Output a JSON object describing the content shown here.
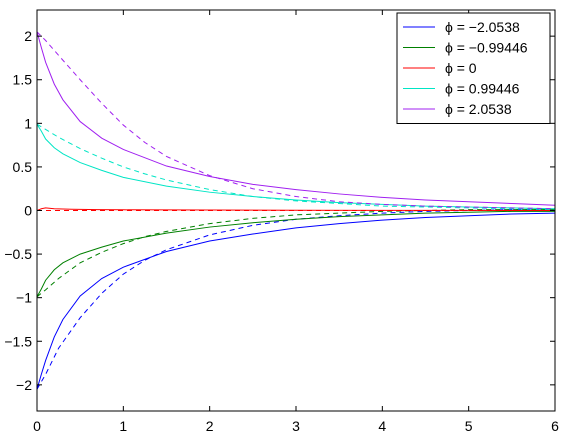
{
  "chart_data": {
    "type": "line",
    "title": "",
    "xlabel": "",
    "ylabel": "",
    "xlim": [
      0,
      6
    ],
    "ylim": [
      -2.3,
      2.3
    ],
    "xticks": [
      "0",
      "1",
      "2",
      "3",
      "4",
      "5",
      "6"
    ],
    "yticks": [
      "-2",
      "-1.5",
      "-1",
      "-0.5",
      "0",
      "0.5",
      "1",
      "1.5",
      "2"
    ],
    "grid": false,
    "legend_position": "top-right",
    "series": [
      {
        "name": "ϕ = −2.0538",
        "color": "#0000ff",
        "solid": {
          "x": [
            0,
            0.05,
            0.1,
            0.2,
            0.3,
            0.5,
            0.75,
            1,
            1.5,
            2,
            2.5,
            3,
            3.5,
            4,
            4.5,
            5,
            5.5,
            6
          ],
          "y": [
            -2.05,
            -1.88,
            -1.72,
            -1.45,
            -1.25,
            -0.98,
            -0.78,
            -0.65,
            -0.47,
            -0.35,
            -0.27,
            -0.2,
            -0.15,
            -0.11,
            -0.08,
            -0.06,
            -0.04,
            -0.03
          ]
        },
        "dashed": {
          "x": [
            0,
            0.1,
            0.25,
            0.5,
            0.75,
            1,
            1.25,
            1.5,
            2,
            2.5,
            3,
            3.5,
            4,
            4.5,
            5,
            5.5,
            6
          ],
          "y": [
            -2.05,
            -1.88,
            -1.58,
            -1.23,
            -0.95,
            -0.73,
            -0.57,
            -0.45,
            -0.28,
            -0.17,
            -0.1,
            -0.06,
            -0.03,
            -0.01,
            0.0,
            0.01,
            0.01
          ]
        }
      },
      {
        "name": "ϕ = −0.99446",
        "color": "#008000",
        "solid": {
          "x": [
            0,
            0.05,
            0.1,
            0.2,
            0.3,
            0.5,
            0.75,
            1,
            1.5,
            2,
            2.5,
            3,
            3.5,
            4,
            4.5,
            5,
            5.5,
            6
          ],
          "y": [
            -0.99,
            -0.9,
            -0.8,
            -0.68,
            -0.6,
            -0.5,
            -0.42,
            -0.35,
            -0.26,
            -0.19,
            -0.14,
            -0.1,
            -0.07,
            -0.05,
            -0.03,
            -0.02,
            -0.01,
            -0.01
          ]
        },
        "dashed": {
          "x": [
            0,
            0.1,
            0.25,
            0.5,
            0.75,
            1,
            1.25,
            1.5,
            2,
            2.5,
            3,
            3.5,
            4,
            4.5,
            5,
            5.5,
            6
          ],
          "y": [
            -0.99,
            -0.91,
            -0.78,
            -0.6,
            -0.48,
            -0.38,
            -0.3,
            -0.24,
            -0.15,
            -0.09,
            -0.05,
            -0.03,
            -0.01,
            0.0,
            0.01,
            0.01,
            0.01
          ]
        }
      },
      {
        "name": "ϕ = 0",
        "color": "#ff0000",
        "solid": {
          "x": [
            0,
            0.05,
            0.1,
            0.2,
            0.4,
            0.7,
            1,
            2,
            3,
            4,
            5,
            6
          ],
          "y": [
            0.0,
            0.02,
            0.03,
            0.02,
            0.015,
            0.01,
            0.008,
            0.005,
            0.003,
            0.002,
            0.001,
            0.0
          ]
        },
        "dashed": {
          "x": [
            0,
            1,
            2,
            3,
            4,
            5,
            6
          ],
          "y": [
            0.0,
            0.0,
            0.0,
            0.0,
            0.0,
            0.0,
            0.0
          ]
        }
      },
      {
        "name": "ϕ = 0.99446",
        "color": "#00e5c5",
        "solid": {
          "x": [
            0,
            0.05,
            0.1,
            0.2,
            0.3,
            0.5,
            0.75,
            1,
            1.5,
            2,
            2.5,
            3,
            3.5,
            4,
            4.5,
            5,
            5.5,
            6
          ],
          "y": [
            0.99,
            0.91,
            0.82,
            0.72,
            0.65,
            0.55,
            0.46,
            0.38,
            0.28,
            0.21,
            0.16,
            0.12,
            0.09,
            0.07,
            0.05,
            0.04,
            0.03,
            0.02
          ]
        },
        "dashed": {
          "x": [
            0,
            0.1,
            0.25,
            0.5,
            0.75,
            1,
            1.25,
            1.5,
            2,
            2.5,
            3,
            3.5,
            4,
            4.5,
            5,
            5.5,
            6
          ],
          "y": [
            0.99,
            0.93,
            0.84,
            0.71,
            0.6,
            0.5,
            0.42,
            0.35,
            0.24,
            0.16,
            0.11,
            0.08,
            0.05,
            0.04,
            0.03,
            0.02,
            0.01
          ]
        }
      },
      {
        "name": "ϕ = 2.0538",
        "color": "#a020f0",
        "solid": {
          "x": [
            0,
            0.05,
            0.1,
            0.2,
            0.3,
            0.5,
            0.75,
            1,
            1.5,
            2,
            2.5,
            3,
            3.5,
            4,
            4.5,
            5,
            5.5,
            6
          ],
          "y": [
            2.05,
            1.87,
            1.7,
            1.45,
            1.27,
            1.02,
            0.83,
            0.7,
            0.51,
            0.39,
            0.3,
            0.24,
            0.19,
            0.15,
            0.12,
            0.1,
            0.08,
            0.06
          ]
        },
        "dashed": {
          "x": [
            0,
            0.1,
            0.25,
            0.5,
            0.75,
            1,
            1.25,
            1.5,
            2,
            2.5,
            3,
            3.5,
            4,
            4.5,
            5,
            5.5,
            6
          ],
          "y": [
            2.05,
            1.95,
            1.78,
            1.5,
            1.23,
            0.98,
            0.78,
            0.62,
            0.4,
            0.25,
            0.16,
            0.1,
            0.07,
            0.05,
            0.04,
            0.03,
            0.02
          ]
        }
      }
    ]
  }
}
